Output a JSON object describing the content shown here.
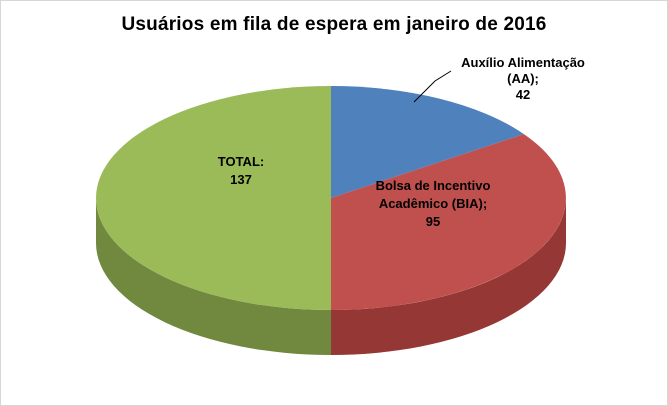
{
  "chart_data": {
    "type": "pie",
    "title": "Usuários em fila de espera em janeiro de 2016",
    "effect": "3d",
    "start_angle_deg": 0,
    "direction": "clockwise",
    "legend": "none",
    "background": "#FFFFFF",
    "border_color": "#D6D6D6",
    "total_of_values": 274,
    "slices": [
      {
        "name": "auxilio-alimentacao",
        "label": "Auxílio Alimentação (AA)",
        "value": 42,
        "color": "#4F81BD",
        "side_color": "#31567D"
      },
      {
        "name": "bolsa-incentivo-academico",
        "label": "Bolsa de Incentivo Acadêmico (BIA)",
        "value": 95,
        "color": "#C0504D",
        "side_color": "#953735"
      },
      {
        "name": "total",
        "label": "TOTAL",
        "value": 137,
        "color": "#9BBB59",
        "side_color": "#71893F"
      }
    ],
    "data_labels": [
      {
        "for": "auxilio-alimentacao",
        "placement": "outside-leader",
        "text_lines": [
          "Auxílio Alimentação",
          "(AA);",
          "42"
        ]
      },
      {
        "for": "bolsa-incentivo-academico",
        "placement": "inside",
        "text_lines": [
          "Bolsa de Incentivo",
          "Acadêmico (BIA);",
          "95"
        ]
      },
      {
        "for": "total",
        "placement": "inside",
        "text_lines": [
          "TOTAL:",
          "137"
        ]
      }
    ]
  }
}
